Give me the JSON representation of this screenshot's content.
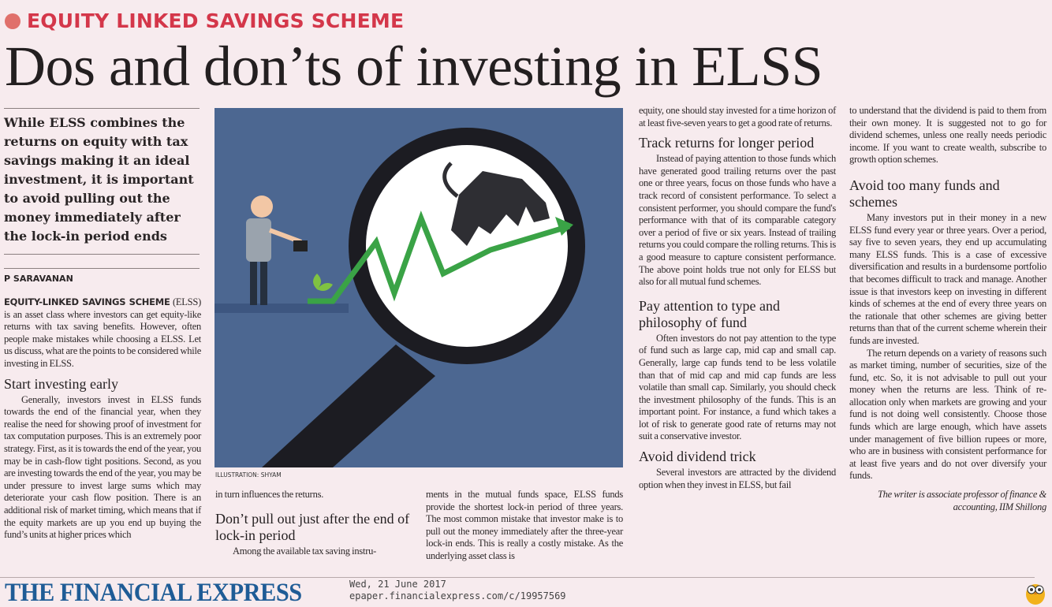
{
  "kicker": "EQUITY LINKED SAVINGS SCHEME",
  "title": "Dos and don’ts of investing in ELSS",
  "deck": "While ELSS combines the returns on equity with tax savings making it an ideal investment, it is important to avoid pulling out the money immediately after the lock-in period ends",
  "byline": "P SARAVANAN",
  "illustration_credit": "ILLUSTRATION: SHYAM",
  "lead_bold": "EQUITY-LINKED SAVINGS SCHEME",
  "lead_rest": " (ELSS) is an asset class where investors can get equity-like returns with tax saving benefits. However, often people make mistakes while choosing a ELSS. Let us discuss, what are the points to be considered while investing in ELSS.",
  "sections": {
    "start": {
      "heading": "Start investing early",
      "p1": "Generally, investors invest in ELSS funds towards the end of the financial year, when they realise the need for showing proof of investment for tax computation purposes. This is an extremely poor strategy. First, as it is towards the end of the year, you may be in cash-flow tight positions. Second, as you are investing towards the end of the year, you may be under pressure to invest large sums which may deteriorate your cash flow position. There is an additional risk of market timing, which means that if the equity markets are up you end up buying the fund’s units at higher prices which",
      "p1_cont": "in turn influences the returns."
    },
    "dont_pull": {
      "heading": "Don’t pull out just after the end of lock-in period",
      "p1": "Among the available tax saving instru-",
      "p1_cont": "ments in the mutual funds space, ELSS funds provide the shortest lock-in period of three years. The most common mistake that investor make is to pull out the money immediately after the three-year lock-in ends. This is really a costly mistake. As the underlying asset class is",
      "p1_cont2": "equity, one should stay invested for a time horizon of at least five-seven years to get a good rate of returns."
    },
    "track": {
      "heading": "Track returns for longer period",
      "p1": "Instead of paying attention to those funds which have generated good trailing returns over the past one or three years, focus on those funds who have a track record of consistent performance. To select a consistent performer, you should compare the fund's performance with that of its comparable category over a period of five or six years. Instead of trailing returns you could compare the rolling returns. This is a good measure to capture consistent performance. The above point holds true not only for ELSS but also for all mutual fund schemes."
    },
    "type": {
      "heading": "Pay attention to type and philosophy of fund",
      "p1": "Often investors do not pay attention to the type of fund such as large cap, mid cap and small cap. Generally, large cap funds tend to be less volatile than that of mid cap and mid cap funds are less volatile than small cap. Similarly, you should check the investment philosophy of the funds. This is an important point. For instance, a fund which takes a lot of risk to generate good rate of returns may not suit a conservative investor."
    },
    "dividend": {
      "heading": "Avoid dividend trick",
      "p1": "Several investors are attracted by the dividend option when they invest in ELSS, but fail",
      "p1_cont": "to understand that the dividend is paid to them from their own money. It is suggested not to go for dividend schemes, unless one really needs periodic income. If you want to create wealth, subscribe to growth option schemes."
    },
    "too_many": {
      "heading": "Avoid too many funds and schemes",
      "p1": "Many investors put in their money in a new ELSS fund every year or three years. Over a period, say five to seven years, they end up accumulating many ELSS funds. This is a case of excessive diversification and results in a burdensome portfolio that becomes difficult to track and manage. Another issue is that investors keep on investing in different kinds of schemes at the end of every three years on the rationale that other schemes are giving better returns than that of the current scheme wherein their funds are invested.",
      "p2": "The return depends on a variety of reasons such as market timing, number of securities, size of the fund, etc. So, it is not advisable to pull out your money when the returns are less. Think of re-allocation only when markets are growing and your fund is not doing well consistently. Choose those funds which are large enough, which have assets under management of five billion rupees or more, who are in business with consistent performance for at least five years and do not over diversify your funds."
    }
  },
  "signature": "The writer is associate professor of finance & accounting, IIM Shillong",
  "footer": {
    "logo": "THE FINANCIAL EXPRESS",
    "date": "Wed, 21 June 2017",
    "url": "epaper.financialexpress.com/c/19957569"
  },
  "colors": {
    "kicker": "#d4374a",
    "logo": "#1f5c96",
    "illustration_bg": "#4c6791",
    "arrow": "#3aa346"
  }
}
